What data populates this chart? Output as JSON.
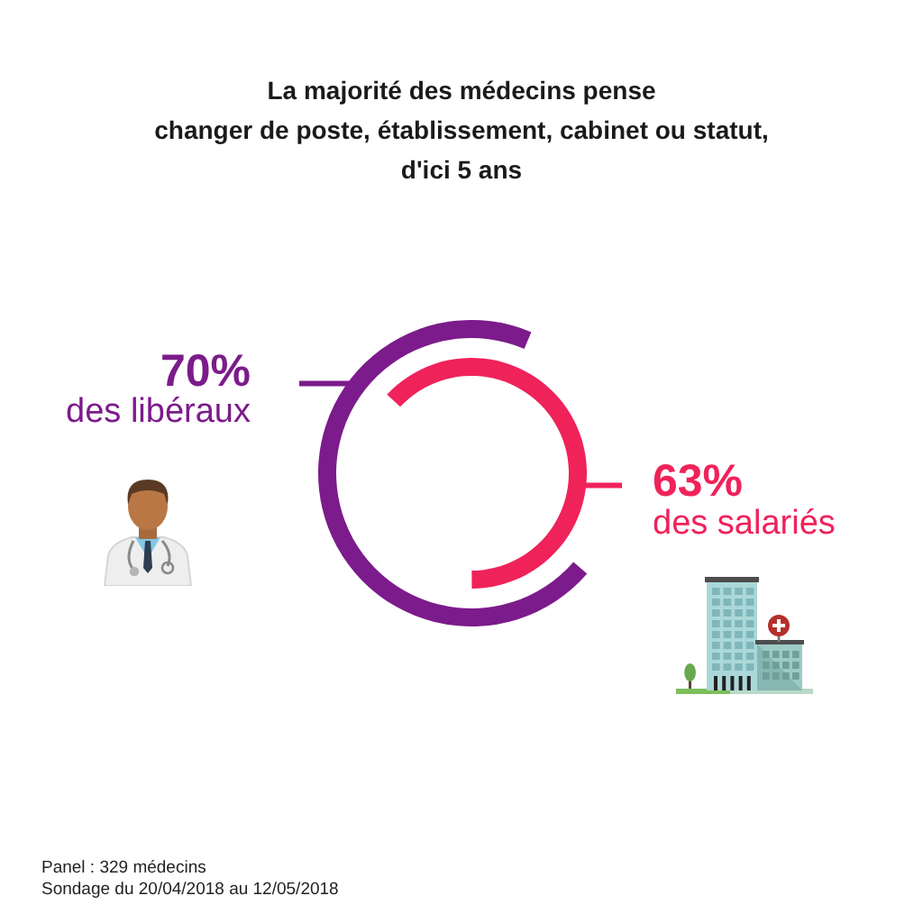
{
  "chart_data": {
    "type": "donut",
    "title": "La majorité des médecins pense\nchanger de poste, établissement, cabinet ou statut,\nd'ici 5 ans",
    "categories": [
      null
    ],
    "series": [
      {
        "name": "des libéraux",
        "color": "#7c1b8b",
        "values": [
          70
        ],
        "value_labels": [
          "70%"
        ]
      },
      {
        "name": "des salariés",
        "color": "#f0225a",
        "values": [
          63
        ],
        "value_labels": [
          "63%"
        ]
      }
    ],
    "annotations": [
      "Panel : 329 médecins",
      "Sondage du 20/04/2018 au 12/05/2018"
    ]
  }
}
